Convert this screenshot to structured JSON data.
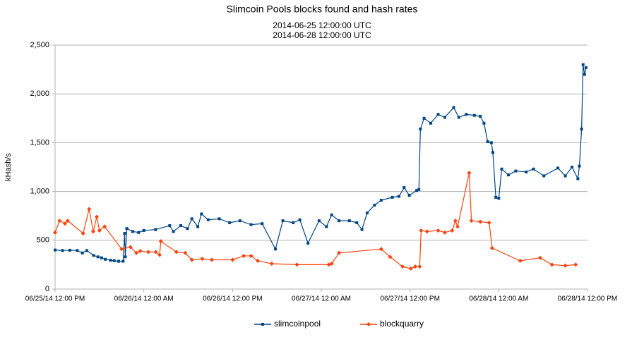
{
  "chart_data": {
    "type": "line",
    "title": "Slimcoin Pools blocks found and hash rates",
    "subtitle": [
      "2014-06-25 12:00:00 UTC",
      "2014-06-28 12:00:00 UTC"
    ],
    "y_label": "kHash/s",
    "xlim": [
      "2014-06-25T12:00",
      "2014-06-28T12:00"
    ],
    "xticks": [
      {
        "value": "2014-06-25T12:00",
        "label": "06/25/14 12:00 PM"
      },
      {
        "value": "2014-06-26T00:00",
        "label": "06/26/14 12:00 AM"
      },
      {
        "value": "2014-06-26T12:00",
        "label": "06/26/14 12:00 PM"
      },
      {
        "value": "2014-06-27T00:00",
        "label": "06/27/14 12:00 AM"
      },
      {
        "value": "2014-06-27T12:00",
        "label": "06/27/14 12:00 PM"
      },
      {
        "value": "2014-06-28T00:00",
        "label": "06/28/14 12:00 AM"
      },
      {
        "value": "2014-06-28T12:00",
        "label": "06/28/14 12:00 PM"
      }
    ],
    "ylim": [
      0,
      2500
    ],
    "yticks": [
      0,
      500,
      {
        "value": 1000,
        "label": "1,000"
      },
      {
        "value": 1500,
        "label": "1,500"
      },
      {
        "value": 2000,
        "label": "2,000"
      },
      {
        "value": 2500,
        "label": "2,500"
      }
    ],
    "grid": true,
    "legend": "bottom",
    "series": [
      {
        "name": "slimcoinpool",
        "color": "#004586",
        "marker": "square",
        "x": [
          "2014-06-25T12:00",
          "2014-06-25T13:00",
          "2014-06-25T14:00",
          "2014-06-25T15:00",
          "2014-06-25T15:42",
          "2014-06-25T16:18",
          "2014-06-25T17:12",
          "2014-06-25T17:48",
          "2014-06-25T18:18",
          "2014-06-25T18:48",
          "2014-06-25T19:30",
          "2014-06-25T20:00",
          "2014-06-25T20:36",
          "2014-06-25T21:12",
          "2014-06-25T21:24",
          "2014-06-25T21:30",
          "2014-06-25T21:42",
          "2014-06-25T22:30",
          "2014-06-25T23:18",
          "2014-06-26T00:00",
          "2014-06-26T01:36",
          "2014-06-26T03:30",
          "2014-06-26T04:00",
          "2014-06-26T05:00",
          "2014-06-26T05:54",
          "2014-06-26T06:30",
          "2014-06-26T07:18",
          "2014-06-26T07:48",
          "2014-06-26T08:42",
          "2014-06-26T10:12",
          "2014-06-26T11:36",
          "2014-06-26T13:00",
          "2014-06-26T14:30",
          "2014-06-26T16:00",
          "2014-06-26T17:48",
          "2014-06-26T18:48",
          "2014-06-26T20:12",
          "2014-06-26T21:06",
          "2014-06-26T22:12",
          "2014-06-26T23:42",
          "2014-06-27T00:42",
          "2014-06-27T01:24",
          "2014-06-27T02:24",
          "2014-06-27T03:48",
          "2014-06-27T04:48",
          "2014-06-27T05:30",
          "2014-06-27T06:12",
          "2014-06-27T07:12",
          "2014-06-27T08:06",
          "2014-06-27T09:36",
          "2014-06-27T10:30",
          "2014-06-27T11:12",
          "2014-06-27T11:54",
          "2014-06-27T12:54",
          "2014-06-27T13:12",
          "2014-06-27T13:24",
          "2014-06-27T13:54",
          "2014-06-27T14:48",
          "2014-06-27T15:48",
          "2014-06-27T16:42",
          "2014-06-27T17:54",
          "2014-06-27T18:36",
          "2014-06-27T19:36",
          "2014-06-27T20:42",
          "2014-06-27T21:30",
          "2014-06-27T22:00",
          "2014-06-27T22:30",
          "2014-06-27T23:00",
          "2014-06-27T23:12",
          "2014-06-27T23:36",
          "2014-06-28T00:00",
          "2014-06-28T00:24",
          "2014-06-28T01:18",
          "2014-06-28T02:18",
          "2014-06-28T03:42",
          "2014-06-28T04:42",
          "2014-06-28T06:06",
          "2014-06-28T08:00",
          "2014-06-28T09:00",
          "2014-06-28T09:54",
          "2014-06-28T10:42",
          "2014-06-28T10:54",
          "2014-06-28T11:12",
          "2014-06-28T11:24",
          "2014-06-28T11:36",
          "2014-06-28T11:48"
        ],
        "values": [
          400,
          395,
          398,
          395,
          370,
          395,
          345,
          330,
          320,
          305,
          295,
          290,
          285,
          285,
          570,
          330,
          620,
          590,
          580,
          600,
          610,
          650,
          590,
          650,
          620,
          720,
          640,
          770,
          710,
          720,
          680,
          700,
          660,
          670,
          410,
          700,
          680,
          710,
          470,
          700,
          640,
          760,
          700,
          700,
          680,
          610,
          780,
          860,
          910,
          940,
          950,
          1040,
          960,
          1010,
          1020,
          1640,
          1750,
          1700,
          1790,
          1760,
          1860,
          1760,
          1790,
          1780,
          1770,
          1700,
          1510,
          1500,
          1400,
          940,
          930,
          1230,
          1170,
          1210,
          1200,
          1230,
          1160,
          1240,
          1160,
          1250,
          1130,
          1260,
          1640,
          2300,
          2200,
          2270
        ]
      },
      {
        "name": "blockquarry",
        "color": "#ff420e",
        "marker": "diamond",
        "x": [
          "2014-06-25T12:00",
          "2014-06-25T12:36",
          "2014-06-25T13:20",
          "2014-06-25T13:42",
          "2014-06-25T15:48",
          "2014-06-25T16:36",
          "2014-06-25T17:10",
          "2014-06-25T17:38",
          "2014-06-25T18:00",
          "2014-06-25T18:42",
          "2014-06-25T21:00",
          "2014-06-25T22:12",
          "2014-06-25T23:00",
          "2014-06-25T23:30",
          "2014-06-26T00:36",
          "2014-06-26T01:36",
          "2014-06-26T02:08",
          "2014-06-26T02:18",
          "2014-06-26T04:24",
          "2014-06-26T05:36",
          "2014-06-26T06:30",
          "2014-06-26T07:54",
          "2014-06-26T09:12",
          "2014-06-26T12:00",
          "2014-06-26T13:30",
          "2014-06-26T14:30",
          "2014-06-26T15:24",
          "2014-06-26T17:18",
          "2014-06-26T20:42",
          "2014-06-27T01:00",
          "2014-06-27T01:24",
          "2014-06-27T02:24",
          "2014-06-27T08:06",
          "2014-06-27T09:18",
          "2014-06-27T11:00",
          "2014-06-27T12:06",
          "2014-06-27T12:42",
          "2014-06-27T13:18",
          "2014-06-27T13:30",
          "2014-06-27T14:18",
          "2014-06-27T15:48",
          "2014-06-27T16:42",
          "2014-06-27T17:42",
          "2014-06-27T18:08",
          "2014-06-27T18:26",
          "2014-06-27T20:00",
          "2014-06-27T20:18",
          "2014-06-27T21:30",
          "2014-06-27T22:42",
          "2014-06-27T23:06",
          "2014-06-28T02:54",
          "2014-06-28T05:36",
          "2014-06-28T07:12",
          "2014-06-28T09:00",
          "2014-06-28T10:24"
        ],
        "values": [
          580,
          700,
          670,
          700,
          570,
          820,
          590,
          740,
          600,
          640,
          410,
          430,
          370,
          390,
          380,
          380,
          350,
          490,
          380,
          370,
          300,
          310,
          300,
          300,
          340,
          340,
          290,
          260,
          250,
          250,
          260,
          370,
          410,
          330,
          230,
          210,
          230,
          230,
          600,
          590,
          600,
          580,
          600,
          700,
          640,
          1190,
          700,
          690,
          680,
          420,
          290,
          320,
          250,
          240,
          250
        ]
      }
    ]
  }
}
